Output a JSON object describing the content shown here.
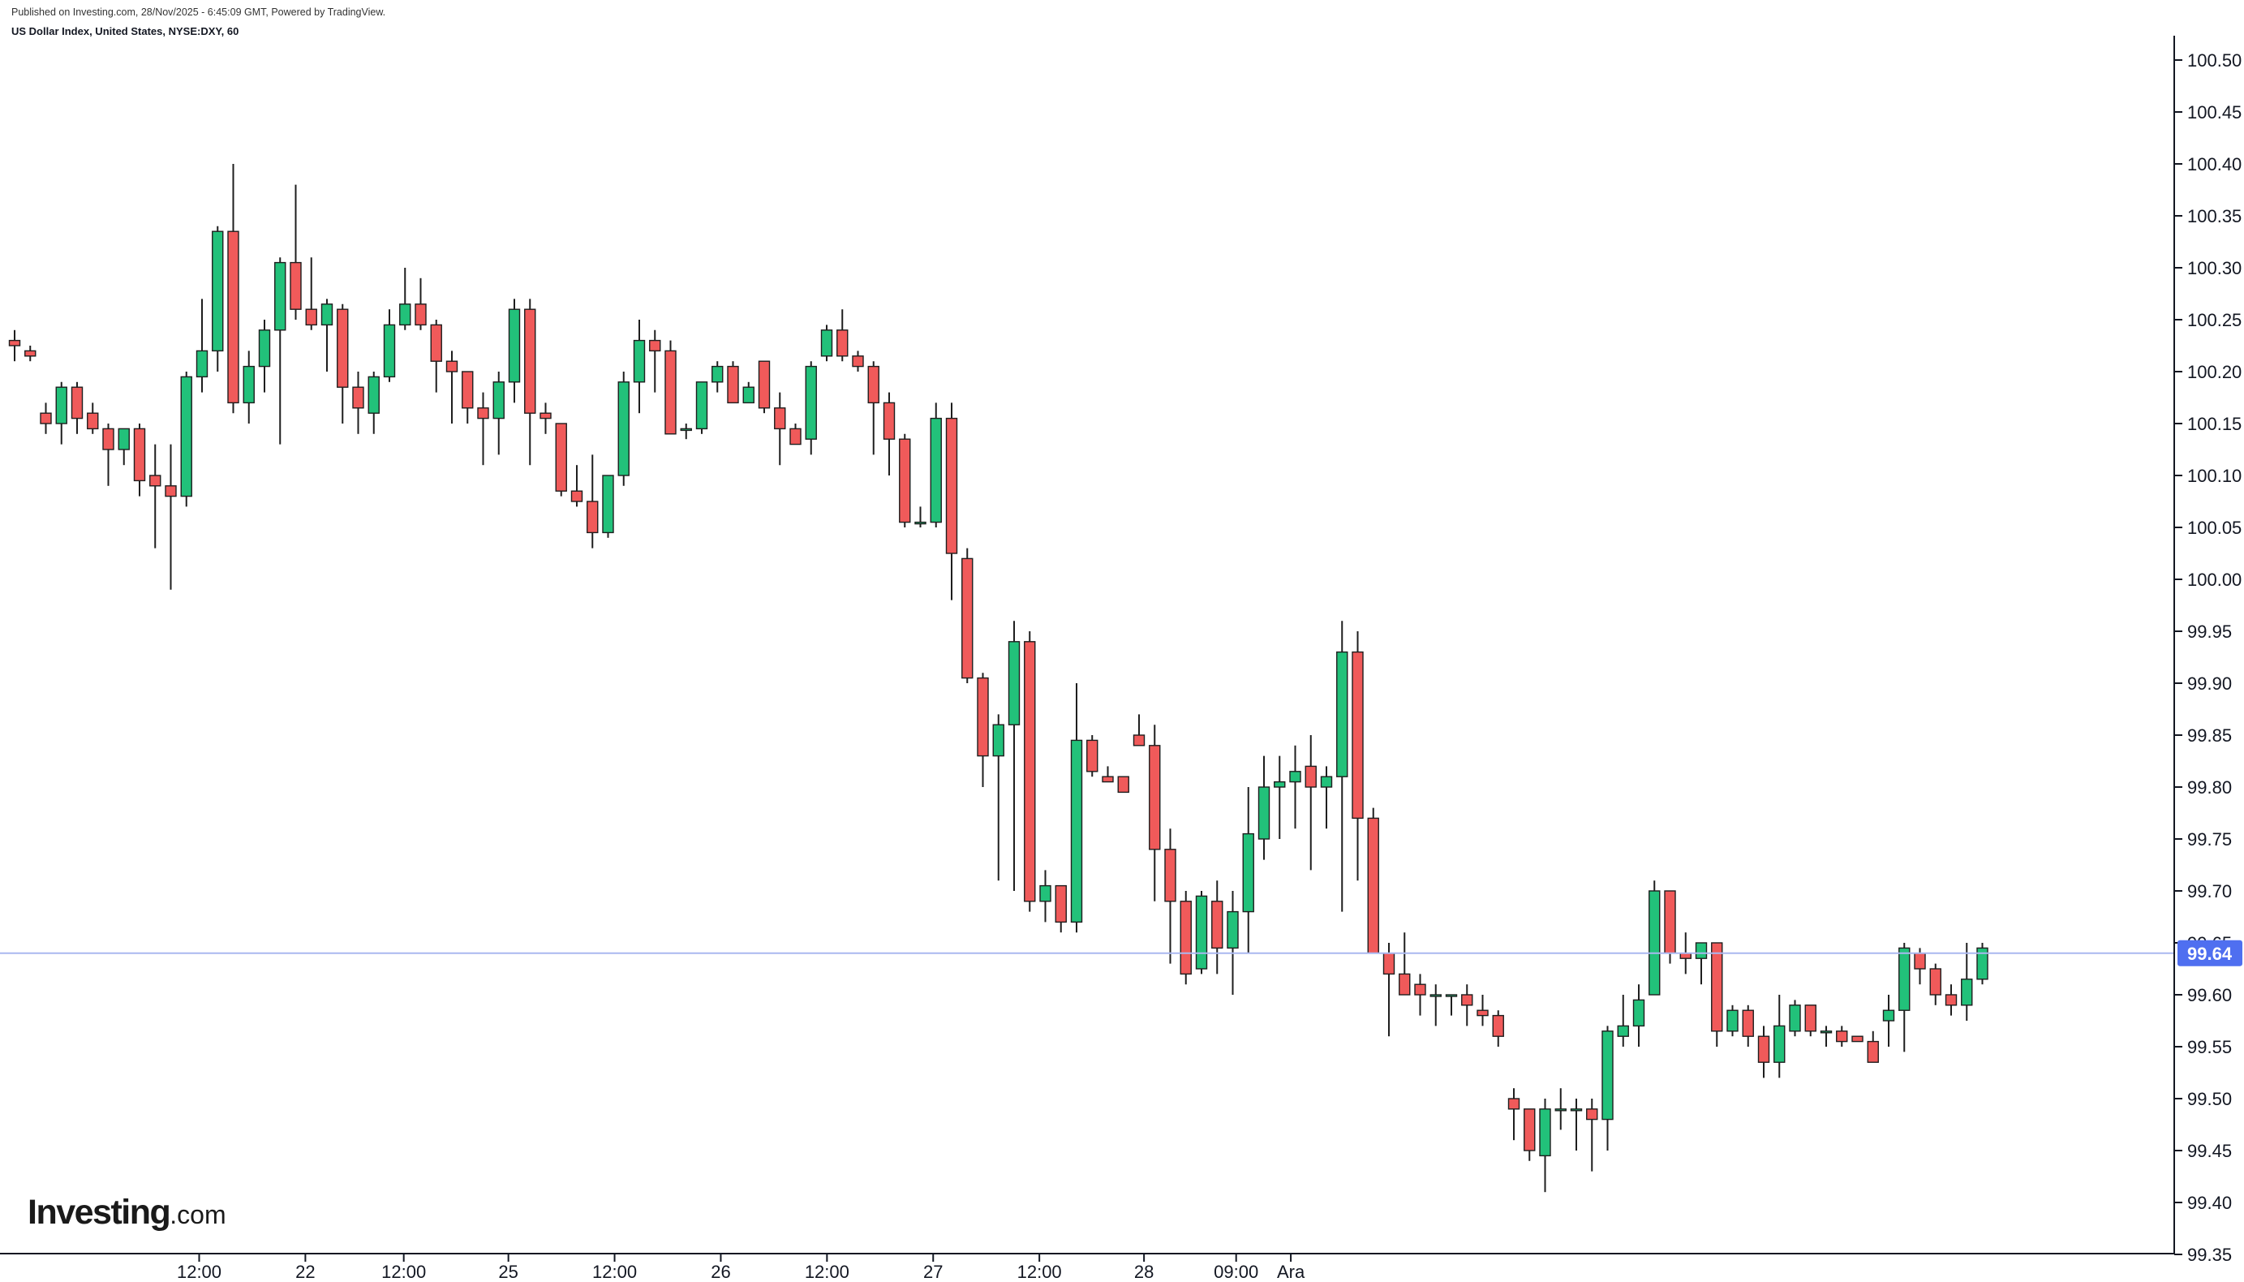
{
  "header": {
    "published": "Published on Investing.com, 28/Nov/2025 - 6:45:09 GMT, Powered by TradingView.",
    "symbol": "US Dollar Index, United States, NYSE:DXY, 60"
  },
  "logo": {
    "main": "Investing",
    "suffix": ".com"
  },
  "colors": {
    "up": "#22c17a",
    "down": "#f05a5a",
    "wick": "#1e1e1e",
    "last_price_line": "#aab8f0",
    "last_price_label_bg": "#4f6ff0",
    "axis": "#131722"
  },
  "chart_data": {
    "type": "candlestick",
    "ylim": [
      99.35,
      100.52
    ],
    "y_ticks": [
      "100.50",
      "100.45",
      "100.40",
      "100.35",
      "100.30",
      "100.25",
      "100.20",
      "100.15",
      "100.10",
      "100.05",
      "100.00",
      "99.95",
      "99.90",
      "99.85",
      "99.80",
      "99.75",
      "99.70",
      "99.65",
      "99.60",
      "99.55",
      "99.50",
      "99.45",
      "99.40",
      "99.35"
    ],
    "x_ticks": [
      "12:00",
      "22",
      "12:00",
      "25",
      "12:00",
      "26",
      "12:00",
      "27",
      "12:00",
      "28",
      "09:00",
      "Ara"
    ],
    "last_price": "99.64",
    "candles": [
      [
        100.23,
        100.24,
        100.21,
        100.225
      ],
      [
        100.22,
        100.225,
        100.21,
        100.215
      ],
      [
        100.16,
        100.17,
        100.14,
        100.15
      ],
      [
        100.15,
        100.19,
        100.13,
        100.185
      ],
      [
        100.185,
        100.19,
        100.14,
        100.155
      ],
      [
        100.16,
        100.17,
        100.14,
        100.145
      ],
      [
        100.145,
        100.15,
        100.09,
        100.125
      ],
      [
        100.125,
        100.145,
        100.11,
        100.145
      ],
      [
        100.145,
        100.15,
        100.08,
        100.095
      ],
      [
        100.1,
        100.13,
        100.03,
        100.09
      ],
      [
        100.09,
        100.13,
        99.99,
        100.08
      ],
      [
        100.08,
        100.2,
        100.07,
        100.195
      ],
      [
        100.195,
        100.27,
        100.18,
        100.22
      ],
      [
        100.22,
        100.34,
        100.2,
        100.335
      ],
      [
        100.335,
        100.4,
        100.16,
        100.17
      ],
      [
        100.17,
        100.22,
        100.15,
        100.205
      ],
      [
        100.205,
        100.25,
        100.18,
        100.24
      ],
      [
        100.24,
        100.31,
        100.13,
        100.305
      ],
      [
        100.305,
        100.38,
        100.25,
        100.26
      ],
      [
        100.26,
        100.31,
        100.24,
        100.245
      ],
      [
        100.245,
        100.27,
        100.2,
        100.265
      ],
      [
        100.26,
        100.265,
        100.15,
        100.185
      ],
      [
        100.185,
        100.2,
        100.14,
        100.165
      ],
      [
        100.16,
        100.2,
        100.14,
        100.195
      ],
      [
        100.195,
        100.26,
        100.19,
        100.245
      ],
      [
        100.245,
        100.3,
        100.24,
        100.265
      ],
      [
        100.265,
        100.29,
        100.24,
        100.245
      ],
      [
        100.245,
        100.25,
        100.18,
        100.21
      ],
      [
        100.21,
        100.22,
        100.15,
        100.2
      ],
      [
        100.2,
        100.2,
        100.15,
        100.165
      ],
      [
        100.165,
        100.18,
        100.11,
        100.155
      ],
      [
        100.155,
        100.2,
        100.12,
        100.19
      ],
      [
        100.19,
        100.27,
        100.17,
        100.26
      ],
      [
        100.26,
        100.27,
        100.11,
        100.16
      ],
      [
        100.16,
        100.17,
        100.14,
        100.155
      ],
      [
        100.15,
        100.15,
        100.08,
        100.085
      ],
      [
        100.085,
        100.11,
        100.07,
        100.075
      ],
      [
        100.075,
        100.12,
        100.03,
        100.045
      ],
      [
        100.045,
        100.1,
        100.04,
        100.1
      ],
      [
        100.1,
        100.2,
        100.09,
        100.19
      ],
      [
        100.19,
        100.25,
        100.16,
        100.23
      ],
      [
        100.23,
        100.24,
        100.18,
        100.22
      ],
      [
        100.22,
        100.23,
        100.14,
        100.14
      ],
      [
        100.145,
        100.15,
        100.135,
        100.145
      ],
      [
        100.145,
        100.19,
        100.14,
        100.19
      ],
      [
        100.19,
        100.21,
        100.18,
        100.205
      ],
      [
        100.205,
        100.21,
        100.17,
        100.17
      ],
      [
        100.17,
        100.19,
        100.17,
        100.185
      ],
      [
        100.21,
        100.21,
        100.16,
        100.165
      ],
      [
        100.165,
        100.18,
        100.11,
        100.145
      ],
      [
        100.145,
        100.15,
        100.13,
        100.13
      ],
      [
        100.135,
        100.21,
        100.12,
        100.205
      ],
      [
        100.215,
        100.245,
        100.21,
        100.24
      ],
      [
        100.24,
        100.26,
        100.21,
        100.215
      ],
      [
        100.215,
        100.22,
        100.2,
        100.205
      ],
      [
        100.205,
        100.21,
        100.12,
        100.17
      ],
      [
        100.17,
        100.18,
        100.1,
        100.135
      ],
      [
        100.135,
        100.14,
        100.05,
        100.055
      ],
      [
        100.055,
        100.07,
        100.05,
        100.055
      ],
      [
        100.055,
        100.17,
        100.05,
        100.155
      ],
      [
        100.155,
        100.17,
        99.98,
        100.025
      ],
      [
        100.02,
        100.03,
        99.9,
        99.905
      ],
      [
        99.905,
        99.91,
        99.8,
        99.83
      ],
      [
        99.83,
        99.87,
        99.71,
        99.86
      ],
      [
        99.86,
        99.96,
        99.7,
        99.94
      ],
      [
        99.94,
        99.95,
        99.68,
        99.69
      ],
      [
        99.69,
        99.72,
        99.67,
        99.705
      ],
      [
        99.705,
        99.7,
        99.66,
        99.67
      ],
      [
        99.67,
        99.9,
        99.66,
        99.845
      ],
      [
        99.845,
        99.85,
        99.81,
        99.815
      ],
      [
        99.81,
        99.82,
        99.805,
        99.805
      ],
      [
        99.81,
        99.81,
        99.795,
        99.795
      ],
      [
        99.85,
        99.87,
        99.84,
        99.84
      ],
      [
        99.84,
        99.86,
        99.69,
        99.74
      ],
      [
        99.74,
        99.76,
        99.63,
        99.69
      ],
      [
        99.69,
        99.7,
        99.61,
        99.62
      ],
      [
        99.625,
        99.7,
        99.62,
        99.695
      ],
      [
        99.69,
        99.71,
        99.62,
        99.645
      ],
      [
        99.645,
        99.7,
        99.6,
        99.68
      ],
      [
        99.68,
        99.8,
        99.64,
        99.755
      ],
      [
        99.75,
        99.83,
        99.73,
        99.8
      ],
      [
        99.8,
        99.83,
        99.75,
        99.805
      ],
      [
        99.805,
        99.84,
        99.76,
        99.815
      ],
      [
        99.82,
        99.85,
        99.72,
        99.8
      ],
      [
        99.8,
        99.82,
        99.76,
        99.81
      ],
      [
        99.81,
        99.96,
        99.68,
        99.93
      ],
      [
        99.93,
        99.95,
        99.71,
        99.77
      ],
      [
        99.77,
        99.78,
        99.64,
        99.64
      ],
      [
        99.64,
        99.65,
        99.56,
        99.62
      ],
      [
        99.62,
        99.66,
        99.61,
        99.6
      ],
      [
        99.61,
        99.62,
        99.58,
        99.6
      ],
      [
        99.6,
        99.61,
        99.57,
        99.6
      ],
      [
        99.6,
        99.6,
        99.58,
        99.6
      ],
      [
        99.6,
        99.61,
        99.57,
        99.59
      ],
      [
        99.585,
        99.6,
        99.57,
        99.58
      ],
      [
        99.58,
        99.585,
        99.55,
        99.56
      ],
      [
        99.5,
        99.51,
        99.46,
        99.49
      ],
      [
        99.49,
        99.49,
        99.44,
        99.45
      ],
      [
        99.445,
        99.5,
        99.41,
        99.49
      ],
      [
        99.49,
        99.51,
        99.47,
        99.49
      ],
      [
        99.49,
        99.5,
        99.45,
        99.49
      ],
      [
        99.49,
        99.5,
        99.43,
        99.48
      ],
      [
        99.48,
        99.57,
        99.45,
        99.565
      ],
      [
        99.56,
        99.6,
        99.55,
        99.57
      ],
      [
        99.57,
        99.61,
        99.55,
        99.595
      ],
      [
        99.6,
        99.71,
        99.6,
        99.7
      ],
      [
        99.7,
        99.7,
        99.63,
        99.64
      ],
      [
        99.64,
        99.66,
        99.62,
        99.635
      ],
      [
        99.635,
        99.65,
        99.61,
        99.65
      ],
      [
        99.65,
        99.65,
        99.55,
        99.565
      ],
      [
        99.565,
        99.59,
        99.56,
        99.585
      ],
      [
        99.585,
        99.59,
        99.55,
        99.56
      ],
      [
        99.56,
        99.57,
        99.52,
        99.535
      ],
      [
        99.535,
        99.6,
        99.52,
        99.57
      ],
      [
        99.565,
        99.595,
        99.56,
        99.59
      ],
      [
        99.59,
        99.59,
        99.56,
        99.565
      ],
      [
        99.565,
        99.57,
        99.55,
        99.565
      ],
      [
        99.565,
        99.57,
        99.55,
        99.555
      ],
      [
        99.56,
        99.56,
        99.555,
        99.555
      ],
      [
        99.555,
        99.565,
        99.535,
        99.535
      ],
      [
        99.575,
        99.6,
        99.55,
        99.585
      ],
      [
        99.585,
        99.65,
        99.545,
        99.645
      ],
      [
        99.64,
        99.645,
        99.61,
        99.625
      ],
      [
        99.625,
        99.63,
        99.59,
        99.6
      ],
      [
        99.6,
        99.61,
        99.58,
        99.59
      ],
      [
        99.59,
        99.65,
        99.575,
        99.615
      ],
      [
        99.615,
        99.65,
        99.61,
        99.645
      ]
    ]
  }
}
